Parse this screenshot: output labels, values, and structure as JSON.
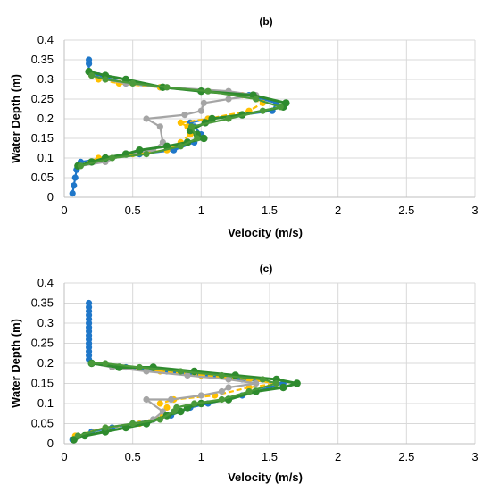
{
  "figure": {
    "series_colors": [
      "#1f77c9",
      "#ffc000",
      "#a5a5a5",
      "#2e8b2e",
      "#4a9a3a"
    ]
  },
  "chart_data": [
    {
      "type": "line",
      "title": "(b)",
      "xlabel": "Velocity (m/s)",
      "ylabel": "Water Depth (m)",
      "xlim": [
        0,
        3
      ],
      "ylim": [
        0,
        0.4
      ],
      "xticks": [
        "0",
        "0.5",
        "1",
        "1.5",
        "2",
        "2.5",
        "3"
      ],
      "yticks": [
        "0",
        "0.05",
        "0.1",
        "0.15",
        "0.2",
        "0.25",
        "0.3",
        "0.35",
        "0.4"
      ],
      "grid": true,
      "series": [
        {
          "color": "#1f77c9",
          "x": [
            0.06,
            0.07,
            0.08,
            0.09,
            0.1,
            0.12,
            0.3,
            0.55,
            0.8,
            0.95,
            1.0,
            0.95,
            0.92,
            1.05,
            1.3,
            1.52,
            1.55,
            1.35,
            1.0,
            0.7,
            0.45,
            0.25,
            0.18,
            0.18,
            0.18
          ],
          "y": [
            0.01,
            0.03,
            0.05,
            0.07,
            0.08,
            0.09,
            0.1,
            0.11,
            0.12,
            0.14,
            0.16,
            0.18,
            0.19,
            0.2,
            0.21,
            0.22,
            0.24,
            0.26,
            0.27,
            0.28,
            0.29,
            0.31,
            0.32,
            0.34,
            0.35
          ]
        },
        {
          "color": "#ffc000",
          "x": [
            0.1,
            0.25,
            0.5,
            0.75,
            0.85,
            0.92,
            0.9,
            0.85,
            1.05,
            1.35,
            1.45,
            1.3,
            1.0,
            0.7,
            0.4,
            0.25,
            0.2
          ],
          "y": [
            0.08,
            0.1,
            0.11,
            0.12,
            0.14,
            0.16,
            0.18,
            0.19,
            0.2,
            0.22,
            0.24,
            0.26,
            0.27,
            0.28,
            0.29,
            0.3,
            0.31
          ]
        },
        {
          "color": "#a5a5a5",
          "x": [
            0.12,
            0.3,
            0.45,
            0.65,
            0.72,
            0.7,
            0.6,
            0.88,
            1.0,
            1.02,
            1.2,
            1.4,
            1.2,
            0.75,
            0.45,
            0.3,
            0.2
          ],
          "y": [
            0.08,
            0.09,
            0.11,
            0.12,
            0.14,
            0.18,
            0.2,
            0.21,
            0.22,
            0.24,
            0.25,
            0.26,
            0.27,
            0.28,
            0.29,
            0.3,
            0.31
          ]
        },
        {
          "color": "#2e8b2e",
          "x": [
            0.1,
            0.2,
            0.3,
            0.45,
            0.55,
            0.75,
            0.9,
            1.02,
            0.97,
            0.92,
            1.03,
            1.08,
            1.3,
            1.6,
            1.62,
            1.38,
            1.0,
            0.72,
            0.45,
            0.3,
            0.18
          ],
          "y": [
            0.08,
            0.09,
            0.1,
            0.11,
            0.12,
            0.13,
            0.14,
            0.15,
            0.16,
            0.17,
            0.19,
            0.2,
            0.21,
            0.23,
            0.24,
            0.26,
            0.27,
            0.28,
            0.3,
            0.31,
            0.32
          ]
        },
        {
          "color": "#4a9a3a",
          "x": [
            0.12,
            0.35,
            0.6,
            0.85,
            0.97,
            0.93,
            1.2,
            1.45,
            1.58,
            1.4,
            1.05,
            0.75,
            0.5,
            0.3,
            0.2
          ],
          "y": [
            0.08,
            0.1,
            0.11,
            0.13,
            0.15,
            0.18,
            0.2,
            0.22,
            0.23,
            0.25,
            0.27,
            0.28,
            0.29,
            0.3,
            0.31
          ]
        }
      ]
    },
    {
      "type": "line",
      "title": "(c)",
      "xlabel": "Velocity (m/s)",
      "ylabel": "Water Depth (m)",
      "xlim": [
        0,
        3
      ],
      "ylim": [
        0,
        0.4
      ],
      "xticks": [
        "0",
        "0.5",
        "1",
        "1.5",
        "2",
        "2.5",
        "3"
      ],
      "yticks": [
        "0",
        "0.05",
        "0.1",
        "0.15",
        "0.2",
        "0.25",
        "0.3",
        "0.35",
        "0.4"
      ],
      "grid": true,
      "series": [
        {
          "color": "#1f77c9",
          "x": [
            0.06,
            0.2,
            0.35,
            0.5,
            0.65,
            0.78,
            0.85,
            0.92,
            1.05,
            1.3,
            1.5,
            1.6,
            1.3,
            1.0,
            0.75,
            0.45,
            0.2,
            0.18,
            0.18,
            0.18,
            0.18,
            0.18,
            0.18,
            0.18,
            0.18,
            0.18,
            0.18,
            0.18,
            0.18,
            0.18,
            0.18,
            0.18
          ],
          "y": [
            0.01,
            0.03,
            0.04,
            0.05,
            0.06,
            0.07,
            0.08,
            0.09,
            0.1,
            0.12,
            0.14,
            0.15,
            0.16,
            0.17,
            0.18,
            0.19,
            0.2,
            0.21,
            0.22,
            0.23,
            0.24,
            0.25,
            0.26,
            0.27,
            0.28,
            0.29,
            0.3,
            0.31,
            0.32,
            0.33,
            0.34,
            0.35
          ]
        },
        {
          "color": "#ffc000",
          "x": [
            0.08,
            0.3,
            0.55,
            0.72,
            0.75,
            0.7,
            0.8,
            1.1,
            1.35,
            1.55,
            1.35,
            1.0,
            0.7,
            0.4,
            0.2
          ],
          "y": [
            0.02,
            0.04,
            0.05,
            0.07,
            0.09,
            0.1,
            0.11,
            0.12,
            0.14,
            0.15,
            0.16,
            0.17,
            0.18,
            0.19,
            0.2
          ]
        },
        {
          "color": "#a5a5a5",
          "x": [
            0.1,
            0.3,
            0.5,
            0.65,
            0.72,
            0.6,
            0.78,
            1.0,
            1.15,
            1.2,
            1.4,
            1.2,
            0.9,
            0.6,
            0.35,
            0.2
          ],
          "y": [
            0.02,
            0.04,
            0.05,
            0.06,
            0.08,
            0.11,
            0.11,
            0.12,
            0.13,
            0.14,
            0.15,
            0.16,
            0.17,
            0.18,
            0.19,
            0.2
          ]
        },
        {
          "color": "#2e8b2e",
          "x": [
            0.07,
            0.15,
            0.3,
            0.45,
            0.6,
            0.75,
            0.85,
            0.9,
            1.0,
            1.2,
            1.4,
            1.6,
            1.7,
            1.55,
            1.25,
            0.95,
            0.65,
            0.4,
            0.2
          ],
          "y": [
            0.01,
            0.02,
            0.03,
            0.04,
            0.05,
            0.07,
            0.08,
            0.09,
            0.1,
            0.11,
            0.13,
            0.14,
            0.15,
            0.16,
            0.17,
            0.18,
            0.19,
            0.19,
            0.2
          ]
        },
        {
          "color": "#4a9a3a",
          "x": [
            0.1,
            0.3,
            0.5,
            0.7,
            0.8,
            0.82,
            0.95,
            1.15,
            1.35,
            1.55,
            1.45,
            1.15,
            0.85,
            0.55,
            0.3,
            0.2
          ],
          "y": [
            0.02,
            0.04,
            0.05,
            0.06,
            0.08,
            0.09,
            0.1,
            0.11,
            0.13,
            0.15,
            0.16,
            0.17,
            0.18,
            0.19,
            0.2,
            0.2
          ]
        }
      ]
    }
  ]
}
